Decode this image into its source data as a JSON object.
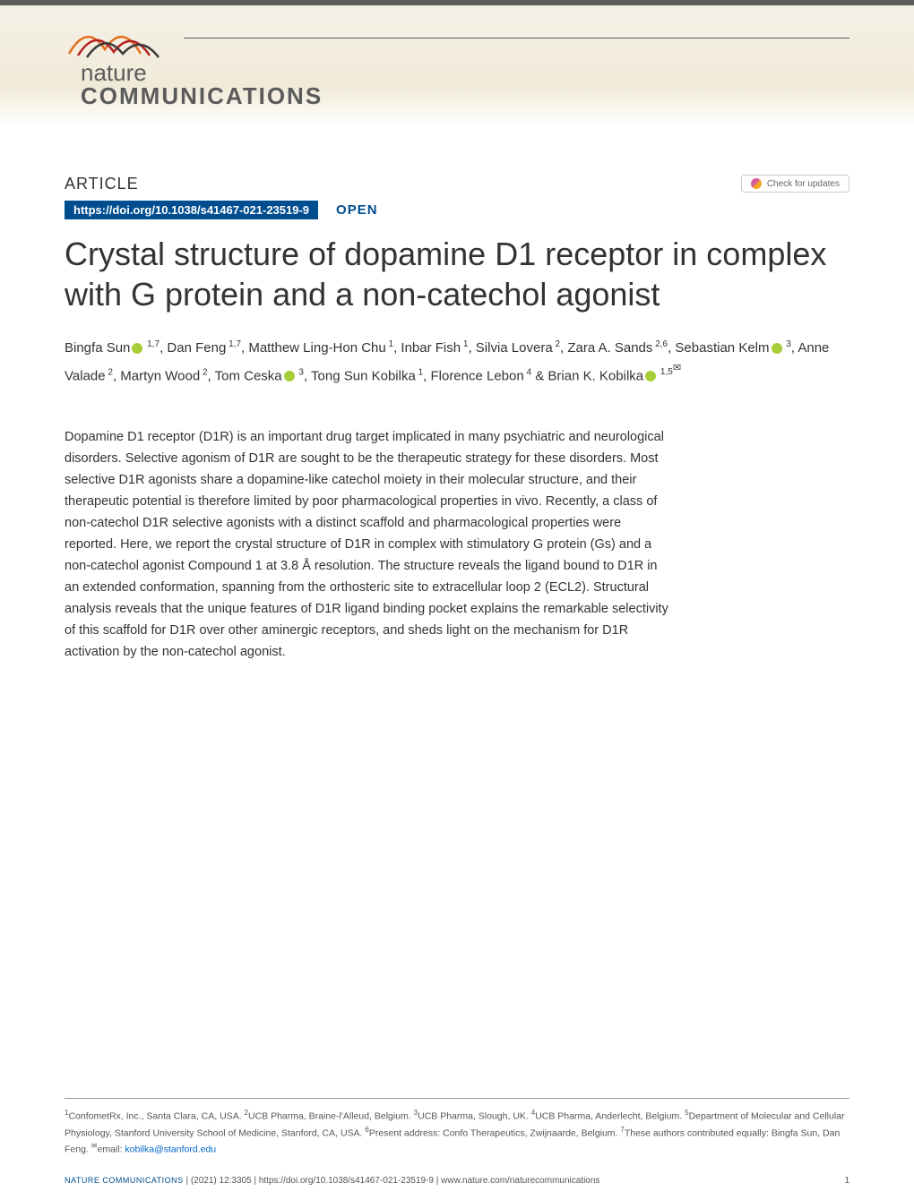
{
  "colors": {
    "header_bg_top": "#f5f1e8",
    "header_bg_bottom": "#f0ead8",
    "header_bar": "#5b5b5b",
    "doi_badge_bg": "#004e8f",
    "open_access": "#004e8f",
    "text": "#333333",
    "orcid_green": "#a6ce39",
    "email_link": "#0066cc",
    "wave_orange": "#e36f1e",
    "wave_red": "#b22222",
    "wave_dark": "#3a3a3a"
  },
  "journal": {
    "name_line1": "nature",
    "name_line2": "COMMUNICATIONS"
  },
  "check_updates_label": "Check for updates",
  "article_type": "ARTICLE",
  "doi": "https://doi.org/10.1038/s41467-021-23519-9",
  "open_access": "OPEN",
  "title": "Crystal structure of dopamine D1 receptor in complex with G protein and a non-catechol agonist",
  "authors": [
    {
      "name": "Bingfa Sun",
      "orcid": true,
      "affs": "1,7"
    },
    {
      "name": "Dan Feng",
      "orcid": false,
      "affs": "1,7"
    },
    {
      "name": "Matthew Ling-Hon Chu",
      "orcid": false,
      "affs": "1"
    },
    {
      "name": "Inbar Fish",
      "orcid": false,
      "affs": "1"
    },
    {
      "name": "Silvia Lovera",
      "orcid": false,
      "affs": "2"
    },
    {
      "name": "Zara A. Sands",
      "orcid": false,
      "affs": "2,6"
    },
    {
      "name": "Sebastian Kelm",
      "orcid": true,
      "affs": "3"
    },
    {
      "name": "Anne Valade",
      "orcid": false,
      "affs": "2"
    },
    {
      "name": "Martyn Wood",
      "orcid": false,
      "affs": "2"
    },
    {
      "name": "Tom Ceska",
      "orcid": true,
      "affs": "3"
    },
    {
      "name": "Tong Sun Kobilka",
      "orcid": false,
      "affs": "1"
    },
    {
      "name": "Florence Lebon",
      "orcid": false,
      "affs": "4"
    },
    {
      "name": "Brian K. Kobilka",
      "orcid": true,
      "affs": "1,5",
      "corresponding": true
    }
  ],
  "abstract": "Dopamine D1 receptor (D1R) is an important drug target implicated in many psychiatric and neurological disorders. Selective agonism of D1R are sought to be the therapeutic strategy for these disorders. Most selective D1R agonists share a dopamine-like catechol moiety in their molecular structure, and their therapeutic potential is therefore limited by poor pharmacological properties in vivo. Recently, a class of non-catechol D1R selective agonists with a distinct scaffold and pharmacological properties were reported. Here, we report the crystal structure of D1R in complex with stimulatory G protein (Gs) and a non-catechol agonist Compound 1 at 3.8 Å resolution. The structure reveals the ligand bound to D1R in an extended conformation, spanning from the orthosteric site to extracellular loop 2 (ECL2). Structural analysis reveals that the unique features of D1R ligand binding pocket explains the remarkable selectivity of this scaffold for D1R over other aminergic receptors, and sheds light on the mechanism for D1R activation by the non-catechol agonist.",
  "affiliations": {
    "1": "ConfometRx, Inc., Santa Clara, CA, USA.",
    "2": "UCB Pharma, Braine-l'Alleud, Belgium.",
    "3": "UCB Pharma, Slough, UK.",
    "4": "UCB Pharma, Anderlecht, Belgium.",
    "5": "Department of Molecular and Cellular Physiology, Stanford University School of Medicine, Stanford, CA, USA.",
    "6": "Present address: Confo Therapeutics, Zwijnaarde, Belgium.",
    "7": "These authors contributed equally: Bingfa Sun, Dan Feng.",
    "email_label": "email:",
    "email": "kobilka@stanford.edu"
  },
  "footer": {
    "journal_ref": "NATURE COMMUNICATIONS",
    "citation": "(2021) 12:3305 | https://doi.org/10.1038/s41467-021-23519-9 | www.nature.com/naturecommunications",
    "page": "1"
  }
}
